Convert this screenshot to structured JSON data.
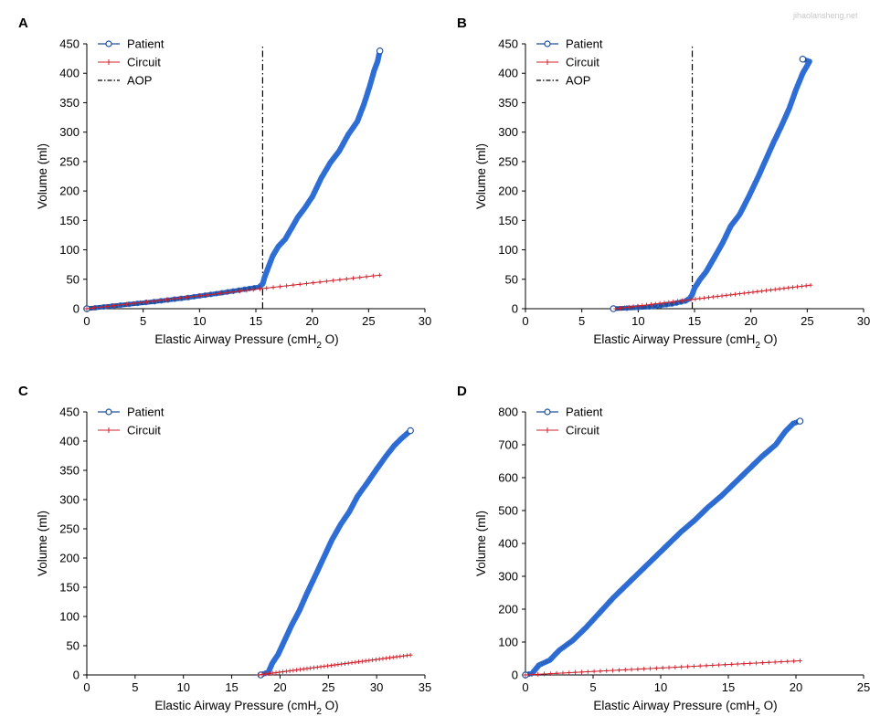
{
  "watermark": "jihaolansheng.net",
  "colors": {
    "patient": "#1f4e9b",
    "patient_marker": "#2f6fd6",
    "circuit": "#d0202c",
    "aop": "#000000"
  },
  "chart_data": [
    {
      "id": "A",
      "type": "scatter",
      "panel_label": "A",
      "xlabel": {
        "main": "Elastic Airway Pressure (cmH",
        "sub": "2",
        "tail": " O)"
      },
      "ylabel": "Volume (ml)",
      "xlim": [
        0,
        30
      ],
      "ylim": [
        0,
        450
      ],
      "xticks": [
        0,
        5,
        10,
        15,
        20,
        25,
        30
      ],
      "yticks": [
        0,
        50,
        100,
        150,
        200,
        250,
        300,
        350,
        400,
        450
      ],
      "legend": {
        "position": "top-left",
        "entries": [
          "Patient",
          "Circuit",
          "AOP"
        ]
      },
      "aop_x": 15.6,
      "series": [
        {
          "name": "Patient",
          "style": "patient",
          "points": [
            [
              0,
              0
            ],
            [
              3,
              6
            ],
            [
              6,
              12
            ],
            [
              9,
              19
            ],
            [
              12,
              27
            ],
            [
              14,
              33
            ],
            [
              15.3,
              37
            ],
            [
              15.6,
              42
            ],
            [
              15.8,
              55
            ],
            [
              16.1,
              70
            ],
            [
              16.5,
              90
            ],
            [
              17,
              106
            ],
            [
              17.6,
              118
            ],
            [
              18.2,
              138
            ],
            [
              18.7,
              155
            ],
            [
              19.3,
              170
            ],
            [
              20,
              190
            ],
            [
              20.8,
              222
            ],
            [
              21.6,
              248
            ],
            [
              22.4,
              268
            ],
            [
              23.2,
              296
            ],
            [
              24,
              318
            ],
            [
              24.6,
              348
            ],
            [
              25.1,
              378
            ],
            [
              25.5,
              405
            ],
            [
              25.8,
              420
            ],
            [
              26,
              438
            ]
          ]
        },
        {
          "name": "Circuit",
          "style": "circuit",
          "points": [
            [
              0,
              0
            ],
            [
              26,
              57
            ]
          ]
        }
      ]
    },
    {
      "id": "B",
      "type": "scatter",
      "panel_label": "B",
      "xlabel": {
        "main": "Elastic Airway Pressure (cmH",
        "sub": "2",
        "tail": " O)"
      },
      "ylabel": "Volume (ml)",
      "xlim": [
        0,
        30
      ],
      "ylim": [
        0,
        450
      ],
      "xticks": [
        0,
        5,
        10,
        15,
        20,
        25,
        30
      ],
      "yticks": [
        0,
        50,
        100,
        150,
        200,
        250,
        300,
        350,
        400,
        450
      ],
      "legend": {
        "position": "top-left",
        "entries": [
          "Patient",
          "Circuit",
          "AOP"
        ]
      },
      "aop_x": 14.8,
      "series": [
        {
          "name": "Patient",
          "style": "patient",
          "points": [
            [
              7.8,
              0
            ],
            [
              9,
              1
            ],
            [
              11,
              3
            ],
            [
              13,
              8
            ],
            [
              14.2,
              13
            ],
            [
              14.6,
              18
            ],
            [
              14.8,
              24
            ],
            [
              15,
              35
            ],
            [
              15.5,
              50
            ],
            [
              16,
              62
            ],
            [
              16.7,
              85
            ],
            [
              17.5,
              112
            ],
            [
              18.2,
              140
            ],
            [
              19,
              160
            ],
            [
              19.8,
              190
            ],
            [
              20.6,
              222
            ],
            [
              21.3,
              252
            ],
            [
              22,
              282
            ],
            [
              22.7,
              310
            ],
            [
              23.4,
              340
            ],
            [
              24,
              372
            ],
            [
              24.6,
              400
            ],
            [
              25.2,
              420
            ],
            [
              24.6,
              424
            ]
          ]
        },
        {
          "name": "Circuit",
          "style": "circuit",
          "points": [
            [
              8,
              0
            ],
            [
              25.3,
              40
            ]
          ]
        }
      ]
    },
    {
      "id": "C",
      "type": "scatter",
      "panel_label": "C",
      "xlabel": {
        "main": "Elastic Airway Pressure (cmH",
        "sub": "2",
        "tail": " O)"
      },
      "ylabel": "Volume (ml)",
      "xlim": [
        0,
        35
      ],
      "ylim": [
        0,
        450
      ],
      "xticks": [
        0,
        5,
        10,
        15,
        20,
        25,
        30,
        35
      ],
      "yticks": [
        0,
        50,
        100,
        150,
        200,
        250,
        300,
        350,
        400,
        450
      ],
      "legend": {
        "position": "top-left",
        "entries": [
          "Patient",
          "Circuit"
        ]
      },
      "series": [
        {
          "name": "Patient",
          "style": "patient",
          "points": [
            [
              18,
              0
            ],
            [
              18.8,
              5
            ],
            [
              19.2,
              20
            ],
            [
              19.8,
              35
            ],
            [
              20.5,
              60
            ],
            [
              21.2,
              85
            ],
            [
              22,
              110
            ],
            [
              22.8,
              140
            ],
            [
              23.6,
              168
            ],
            [
              24.5,
              200
            ],
            [
              25.4,
              232
            ],
            [
              26.3,
              258
            ],
            [
              27.2,
              280
            ],
            [
              28,
              305
            ],
            [
              29,
              328
            ],
            [
              30,
              352
            ],
            [
              31,
              375
            ],
            [
              31.8,
              392
            ],
            [
              32.6,
              405
            ],
            [
              33.5,
              418
            ]
          ]
        },
        {
          "name": "Circuit",
          "style": "circuit",
          "points": [
            [
              17.8,
              0
            ],
            [
              33.5,
              34
            ]
          ]
        }
      ]
    },
    {
      "id": "D",
      "type": "scatter",
      "panel_label": "D",
      "xlabel": {
        "main": "Elastic Airway Pressure (cmH",
        "sub": "2",
        "tail": " O)"
      },
      "ylabel": "Volume (ml)",
      "xlim": [
        0,
        25
      ],
      "ylim": [
        0,
        800
      ],
      "xticks": [
        0,
        5,
        10,
        15,
        20,
        25
      ],
      "yticks": [
        0,
        100,
        200,
        300,
        400,
        500,
        600,
        700,
        800
      ],
      "legend": {
        "position": "top-left",
        "entries": [
          "Patient",
          "Circuit"
        ]
      },
      "series": [
        {
          "name": "Patient",
          "style": "patient",
          "points": [
            [
              0,
              0
            ],
            [
              0.5,
              5
            ],
            [
              1,
              30
            ],
            [
              1.8,
              45
            ],
            [
              2.5,
              75
            ],
            [
              3.5,
              105
            ],
            [
              4.5,
              145
            ],
            [
              5.5,
              190
            ],
            [
              6.5,
              235
            ],
            [
              7.5,
              275
            ],
            [
              8.5,
              315
            ],
            [
              9.5,
              355
            ],
            [
              10.5,
              395
            ],
            [
              11.5,
              435
            ],
            [
              12.5,
              470
            ],
            [
              13.5,
              510
            ],
            [
              14.5,
              545
            ],
            [
              15.5,
              585
            ],
            [
              16.5,
              625
            ],
            [
              17.5,
              665
            ],
            [
              18.5,
              700
            ],
            [
              19.2,
              740
            ],
            [
              19.8,
              765
            ],
            [
              20.3,
              772
            ]
          ]
        },
        {
          "name": "Circuit",
          "style": "circuit",
          "points": [
            [
              0,
              0
            ],
            [
              20.3,
              43
            ]
          ]
        }
      ]
    }
  ]
}
